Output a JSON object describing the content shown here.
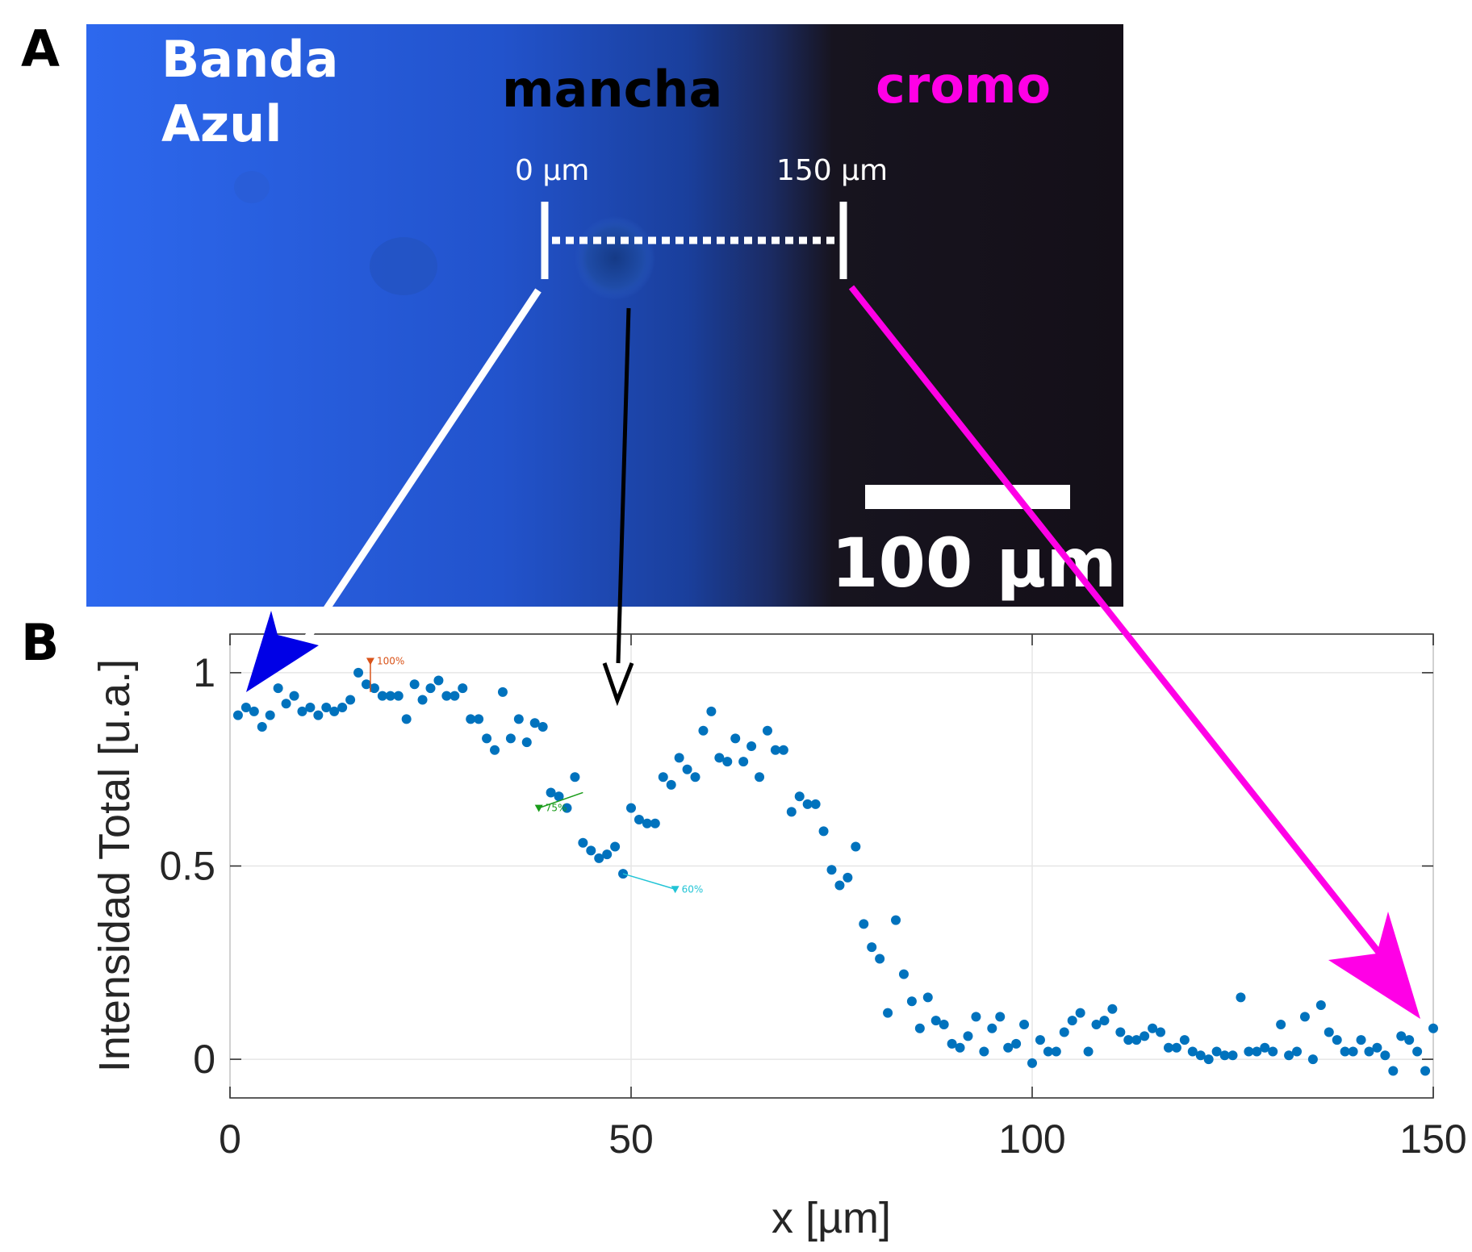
{
  "panels": {
    "a_letter": "A",
    "b_letter": "B"
  },
  "micrograph": {
    "label_band": [
      "Banda",
      "Azul"
    ],
    "label_stain": "mancha",
    "label_chrome": "cromo",
    "mark_start": "0 µm",
    "mark_end": "150 µm",
    "scale_bar": "100 µm",
    "colors": {
      "band_blue": "#2a62e6",
      "dark_region": "#17121e",
      "chrome_label": "#ff00e6",
      "stain_label": "#000000"
    }
  },
  "arrows": {
    "left_arrow_color": "#ffffff",
    "left_head_color": "#0000e6",
    "middle_arrow_color": "#000000",
    "right_arrow_color": "#ff00e6"
  },
  "chart_data": {
    "type": "scatter",
    "xlabel": "x [µm]",
    "ylabel": "Intensidad Total [u.a.]",
    "xlim": [
      0,
      150
    ],
    "ylim": [
      -0.1,
      1.1
    ],
    "xticks": [
      "0",
      "50",
      "100",
      "150"
    ],
    "yticks": [
      "0",
      "0.5",
      "1"
    ],
    "grid": true,
    "marker_color": "#0072bd",
    "series": [
      {
        "x": [
          1,
          2,
          3,
          4,
          5,
          6,
          7,
          8,
          9,
          10,
          11,
          12,
          13,
          14,
          15,
          16,
          17,
          18,
          19,
          20,
          21,
          22,
          23,
          24,
          25,
          26,
          27,
          28,
          29,
          30,
          31,
          32,
          33,
          34,
          35,
          36,
          37,
          38,
          39,
          40,
          41,
          42,
          43,
          44,
          45,
          46,
          47,
          48,
          49,
          50,
          51,
          52,
          53,
          54,
          55,
          56,
          57,
          58,
          59,
          60,
          61,
          62,
          63,
          64,
          65,
          66,
          67,
          68,
          69,
          70,
          71,
          72,
          73,
          74,
          75,
          76,
          77,
          78,
          79,
          80,
          81,
          82,
          83,
          84,
          85,
          86,
          87,
          88,
          89,
          90,
          91,
          92,
          93,
          94,
          95,
          96,
          97,
          98,
          99,
          100,
          101,
          102,
          103,
          104,
          105,
          106,
          107,
          108,
          109,
          110,
          111,
          112,
          113,
          114,
          115,
          116,
          117,
          118,
          119,
          120,
          121,
          122,
          123,
          124,
          125,
          126,
          127,
          128,
          129,
          130,
          131,
          132,
          133,
          134,
          135,
          136,
          137,
          138,
          139,
          140,
          141,
          142,
          143,
          144,
          145,
          146,
          147,
          148,
          149,
          150
        ],
        "y": [
          0.89,
          0.91,
          0.9,
          0.86,
          0.89,
          0.96,
          0.92,
          0.94,
          0.9,
          0.91,
          0.89,
          0.91,
          0.9,
          0.91,
          0.93,
          1.0,
          0.97,
          0.96,
          0.94,
          0.94,
          0.94,
          0.88,
          0.97,
          0.93,
          0.96,
          0.98,
          0.94,
          0.94,
          0.96,
          0.88,
          0.88,
          0.83,
          0.8,
          0.95,
          0.83,
          0.88,
          0.82,
          0.87,
          0.86,
          0.69,
          0.68,
          0.65,
          0.73,
          0.56,
          0.54,
          0.52,
          0.53,
          0.55,
          0.48,
          0.65,
          0.62,
          0.61,
          0.61,
          0.73,
          0.71,
          0.78,
          0.75,
          0.73,
          0.85,
          0.9,
          0.78,
          0.77,
          0.83,
          0.77,
          0.81,
          0.73,
          0.85,
          0.8,
          0.8,
          0.64,
          0.68,
          0.66,
          0.66,
          0.59,
          0.49,
          0.45,
          0.47,
          0.55,
          0.35,
          0.29,
          0.26,
          0.12,
          0.36,
          0.22,
          0.15,
          0.08,
          0.16,
          0.1,
          0.09,
          0.04,
          0.03,
          0.06,
          0.11,
          0.02,
          0.08,
          0.11,
          0.03,
          0.04,
          0.09,
          -0.01,
          0.05,
          0.02,
          0.02,
          0.07,
          0.1,
          0.12,
          0.02,
          0.09,
          0.1,
          0.13,
          0.07,
          0.05,
          0.05,
          0.06,
          0.08,
          0.07,
          0.03,
          0.03,
          0.05,
          0.02,
          0.01,
          0.0,
          0.02,
          0.01,
          0.01,
          0.16,
          0.02,
          0.02,
          0.03,
          0.02,
          0.09,
          0.01,
          0.02,
          0.11,
          0.0,
          0.14,
          0.07,
          0.05,
          0.02,
          0.02,
          0.05,
          0.02,
          0.03,
          0.01,
          -0.03,
          0.06,
          0.05,
          0.02,
          -0.03,
          0.08
        ]
      }
    ],
    "annotations": [
      {
        "text": "100%",
        "x": 17.5,
        "y": 1.03,
        "color": "#d95319"
      },
      {
        "text": "75%",
        "x": 38.5,
        "y": 0.65,
        "color": "#1a9c1a"
      },
      {
        "text": "60%",
        "x": 55.5,
        "y": 0.44,
        "color": "#22c4d6"
      }
    ]
  }
}
